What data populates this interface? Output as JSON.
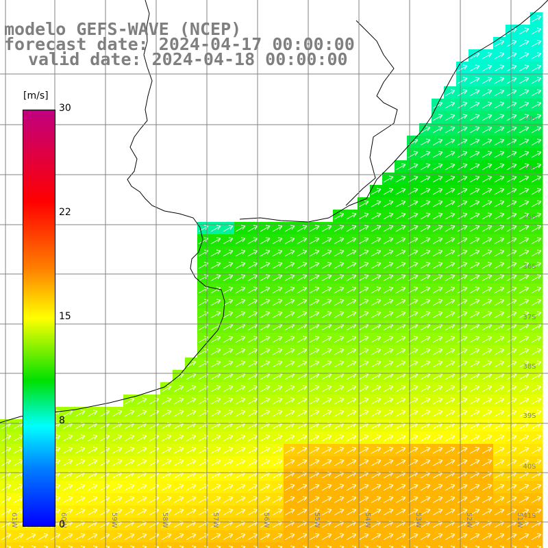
{
  "title": {
    "line1": "modelo GEFS-WAVE (NCEP)",
    "line2": "forecast date: 2024-04-17 00:00:00",
    "line3": "valid date: 2024-04-18 00:00:00"
  },
  "colorbar": {
    "unit": "[m/s]",
    "ticks": [
      "30",
      "22",
      "15",
      "8",
      "0"
    ],
    "min": 0,
    "max": 30,
    "colors": [
      "#0000ff",
      "#0080ff",
      "#00ffff",
      "#00e000",
      "#ffff00",
      "#ff7f00",
      "#ff0000",
      "#c0007f"
    ]
  },
  "map": {
    "lat_labels": [
      "33S",
      "34S",
      "35S",
      "36S",
      "37S",
      "38S",
      "39S",
      "40S",
      "41S"
    ],
    "lon_labels": [
      "61W",
      "60W",
      "59W",
      "58W",
      "57W",
      "56W",
      "55W",
      "54W",
      "53W",
      "52W",
      "51W"
    ],
    "land_color": "#ffffff",
    "grid_color": "#808080",
    "arrow_color": "#ffffff"
  }
}
